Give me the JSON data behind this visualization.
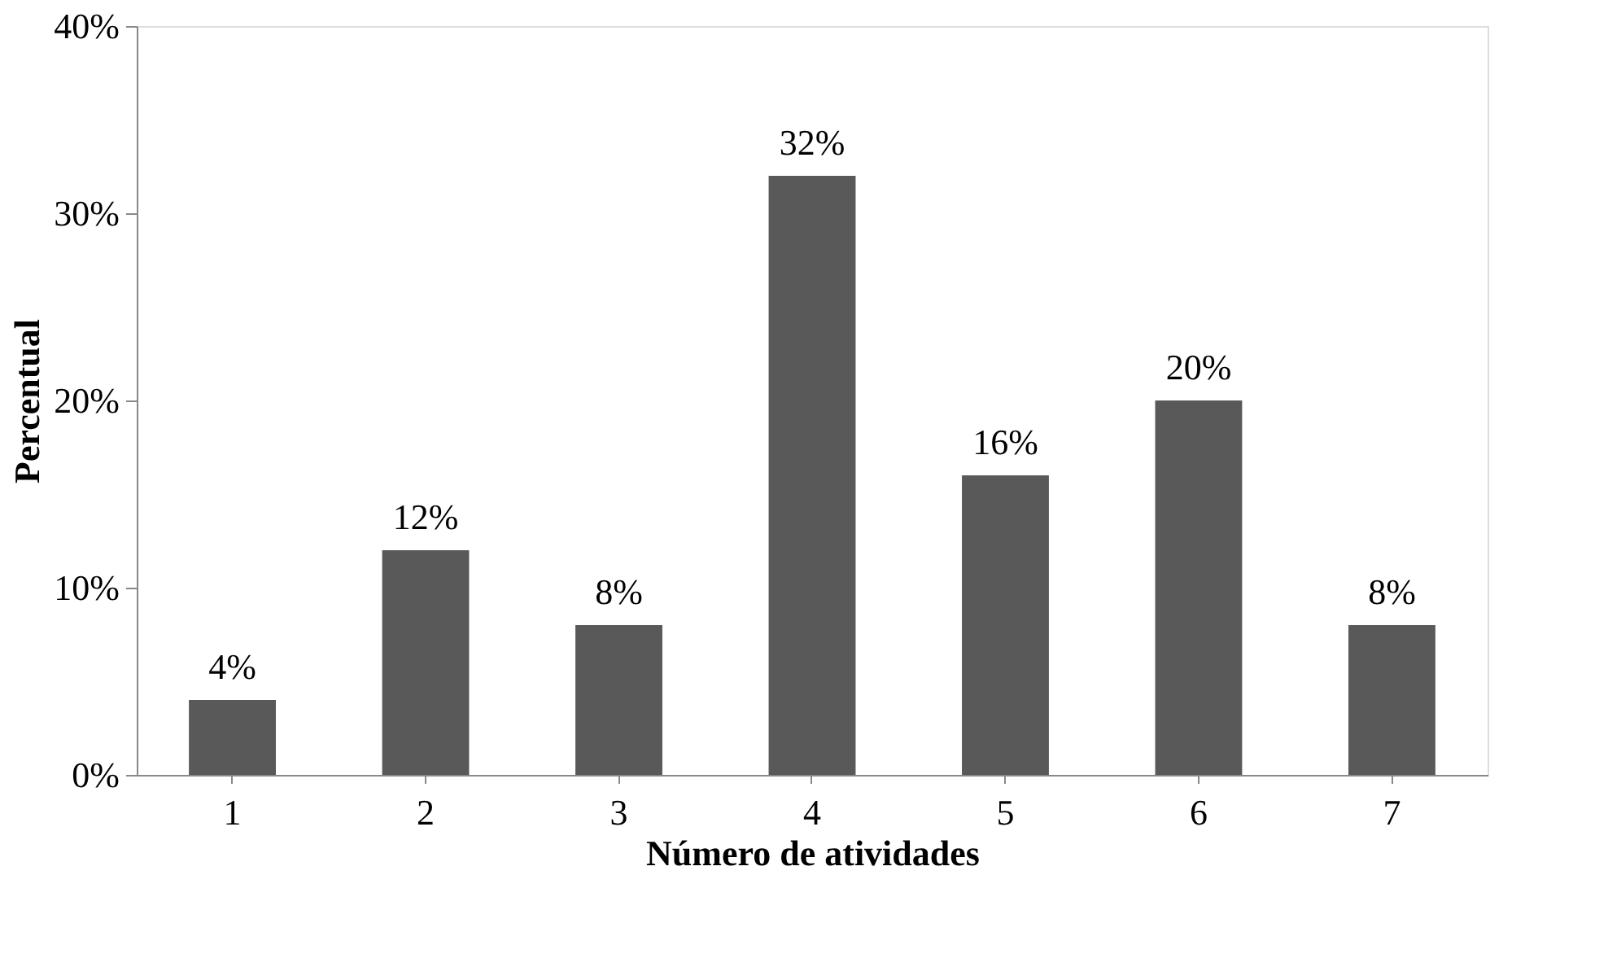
{
  "chart_data": {
    "type": "bar",
    "xlabel": "Número de atividades",
    "ylabel": "Percentual",
    "categories": [
      "1",
      "2",
      "3",
      "4",
      "5",
      "6",
      "7"
    ],
    "values": [
      4,
      12,
      8,
      32,
      16,
      20,
      8
    ],
    "value_labels": [
      "4%",
      "12%",
      "8%",
      "32%",
      "16%",
      "20%",
      "8%"
    ],
    "color": "#595959",
    "ylim": [
      0,
      40
    ],
    "yticks": [
      {
        "value": 0,
        "label": "0%"
      },
      {
        "value": 10,
        "label": "10%"
      },
      {
        "value": 20,
        "label": "20%"
      },
      {
        "value": 30,
        "label": "30%"
      },
      {
        "value": 40,
        "label": "40%"
      }
    ]
  }
}
